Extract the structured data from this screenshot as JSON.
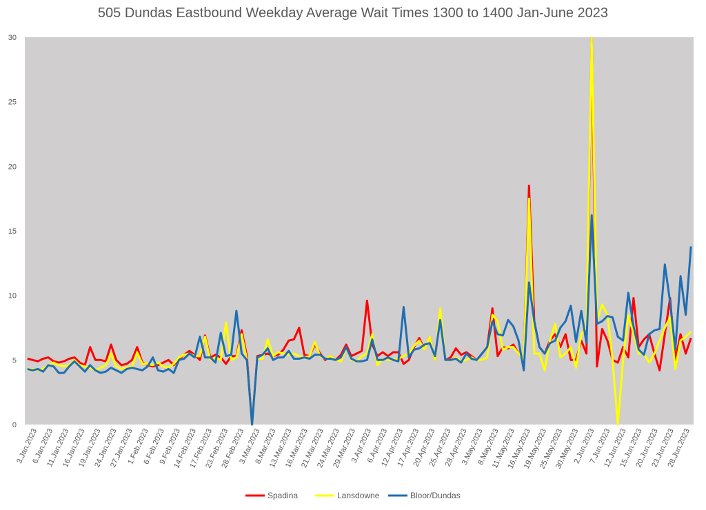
{
  "chart_data": {
    "type": "line",
    "title": "505 Dundas Eastbound Weekday Average Wait Times 1300 to 1400 Jan-June 2023",
    "xlabel": "",
    "ylabel": "",
    "ylim": [
      0,
      30
    ],
    "yticks": [
      0,
      5,
      10,
      15,
      20,
      25,
      30
    ],
    "grid": false,
    "legend_position": "bottom",
    "x_tick_labels": [
      "3.Jan.2023",
      "6.Jan.2023",
      "11.Jan.2023",
      "16.Jan.2023",
      "19.Jan.2023",
      "24.Jan.2023",
      "27.Jan.2023",
      "1.Feb.2023",
      "6.Feb.2023",
      "9.Feb.2023",
      "14.Feb.2023",
      "17.Feb.2023",
      "23.Feb.2023",
      "28.Feb.2023",
      "3.Mar.2023",
      "8.Mar.2023",
      "13.Mar.2023",
      "16.Mar.2023",
      "21.Mar.2023",
      "24.Mar.2023",
      "29.Mar.2023",
      "3.Apr.2023",
      "6.Apr.2023",
      "12.Apr.2023",
      "17.Apr.2023",
      "20.Apr.2023",
      "25.Apr.2023",
      "28.Apr.2023",
      "3.May.2023",
      "8.May.2023",
      "11.May.2023",
      "16.May.2023",
      "19.May.2023",
      "25.May.2023",
      "30.May.2023",
      "2.Jun.2023",
      "7.Jun.2023",
      "12.Jun.2023",
      "15.Jun.2023",
      "20.Jun.2023",
      "23.Jun.2023",
      "28.Jun.2023"
    ],
    "series": [
      {
        "name": "Spadina",
        "color": "#ff0000",
        "values": [
          5.1,
          5.0,
          4.9,
          5.1,
          5.2,
          4.9,
          4.8,
          4.9,
          5.1,
          5.2,
          4.8,
          4.6,
          6.0,
          5.0,
          5.0,
          4.9,
          6.2,
          5.0,
          4.6,
          4.7,
          5.0,
          6.0,
          4.8,
          4.6,
          4.5,
          4.6,
          4.8,
          5.0,
          4.6,
          5.1,
          5.4,
          5.7,
          5.4,
          5.0,
          6.9,
          5.2,
          5.4,
          5.2,
          4.7,
          5.3,
          5.3,
          7.3,
          5.3,
          0.0,
          5.3,
          5.4,
          5.5,
          5.3,
          5.4,
          5.8,
          6.5,
          6.6,
          7.5,
          5.4,
          5.3,
          6.2,
          5.5,
          5.0,
          5.3,
          5.0,
          5.4,
          6.2,
          5.3,
          5.5,
          5.7,
          9.6,
          6.2,
          5.3,
          5.6,
          5.3,
          5.6,
          5.6,
          4.7,
          5.0,
          6.0,
          6.7,
          5.8,
          6.8,
          5.0,
          8.6,
          5.0,
          5.2,
          5.9,
          5.4,
          5.6,
          5.3,
          5.0,
          5.5,
          6.0,
          9.0,
          5.3,
          6.0,
          5.9,
          6.2,
          5.5,
          5.0,
          18.5,
          8.0,
          6.0,
          5.5,
          6.5,
          7.0,
          6.0,
          7.0,
          5.0,
          5.0,
          6.5,
          5.5,
          30.0,
          4.5,
          7.4,
          6.5,
          5.0,
          4.8,
          6.0,
          5.2,
          9.8,
          6.0,
          6.6,
          7.0,
          5.5,
          4.2,
          7.0,
          9.8,
          5.0,
          7.0,
          5.5,
          6.7
        ]
      },
      {
        "name": "Lansdowne",
        "color": "#ffff00",
        "values": [
          4.3,
          4.3,
          4.2,
          4.3,
          4.6,
          4.8,
          4.6,
          4.5,
          4.6,
          5.0,
          4.6,
          4.5,
          4.4,
          4.2,
          4.4,
          4.6,
          5.5,
          4.5,
          4.3,
          4.4,
          4.5,
          5.6,
          4.7,
          4.7,
          4.6,
          4.8,
          4.5,
          4.4,
          4.7,
          5.2,
          5.4,
          5.5,
          5.3,
          5.3,
          6.8,
          5.0,
          5.2,
          5.0,
          7.9,
          5.0,
          5.2,
          7.0,
          5.0,
          0.0,
          5.1,
          5.1,
          6.6,
          5.3,
          5.6,
          5.5,
          5.4,
          5.5,
          5.3,
          5.2,
          5.3,
          6.4,
          5.3,
          5.1,
          5.3,
          5.0,
          4.9,
          6.0,
          5.0,
          4.9,
          5.3,
          5.5,
          7.0,
          4.6,
          5.1,
          5.0,
          5.0,
          5.1,
          5.3,
          5.5,
          6.1,
          6.5,
          5.8,
          6.8,
          5.0,
          9.0,
          5.0,
          5.0,
          5.2,
          4.9,
          5.0,
          5.2,
          5.0,
          5.0,
          5.2,
          8.5,
          8.0,
          5.8,
          6.0,
          6.0,
          5.5,
          5.0,
          17.5,
          5.5,
          5.5,
          4.2,
          6.5,
          7.8,
          5.2,
          5.5,
          6.0,
          4.4,
          7.0,
          7.5,
          30.0,
          8.0,
          9.3,
          8.5,
          5.0,
          0.0,
          5.0,
          8.5,
          7.0,
          5.5,
          5.5,
          4.8,
          5.5,
          6.5,
          7.5,
          8.3,
          4.3,
          6.5,
          6.8,
          7.2
        ]
      },
      {
        "name": "Bloor/Dundas",
        "color": "#1f6eb4",
        "values": [
          4.3,
          4.2,
          4.3,
          4.1,
          4.6,
          4.5,
          4.0,
          4.0,
          4.5,
          4.9,
          4.5,
          4.1,
          4.6,
          4.2,
          4.0,
          4.1,
          4.4,
          4.2,
          4.0,
          4.3,
          4.4,
          4.3,
          4.2,
          4.5,
          5.2,
          4.2,
          4.1,
          4.3,
          4.0,
          5.0,
          5.1,
          5.5,
          5.2,
          6.8,
          5.2,
          5.2,
          4.8,
          7.1,
          5.3,
          5.4,
          8.8,
          5.5,
          5.0,
          0.0,
          5.2,
          5.4,
          5.9,
          5.0,
          5.2,
          5.2,
          5.7,
          5.1,
          5.1,
          5.2,
          5.1,
          5.4,
          5.4,
          5.1,
          5.1,
          5.0,
          5.2,
          6.0,
          5.1,
          4.9,
          4.9,
          5.0,
          6.6,
          5.0,
          5.0,
          5.2,
          5.0,
          4.9,
          9.1,
          5.2,
          5.8,
          5.9,
          6.2,
          6.3,
          5.3,
          8.1,
          5.0,
          5.0,
          5.1,
          4.8,
          5.5,
          5.1,
          5.0,
          5.5,
          6.0,
          8.0,
          7.0,
          6.9,
          8.1,
          7.6,
          6.5,
          4.2,
          11.0,
          8.0,
          6.0,
          5.5,
          6.3,
          6.5,
          7.5,
          8.0,
          9.2,
          6.4,
          8.8,
          6.3,
          16.2,
          7.8,
          8.0,
          8.4,
          8.3,
          6.8,
          6.5,
          10.2,
          7.6,
          5.8,
          5.4,
          7.0,
          7.3,
          7.4,
          12.4,
          9.5,
          5.8,
          11.5,
          8.5,
          13.8
        ]
      }
    ]
  }
}
